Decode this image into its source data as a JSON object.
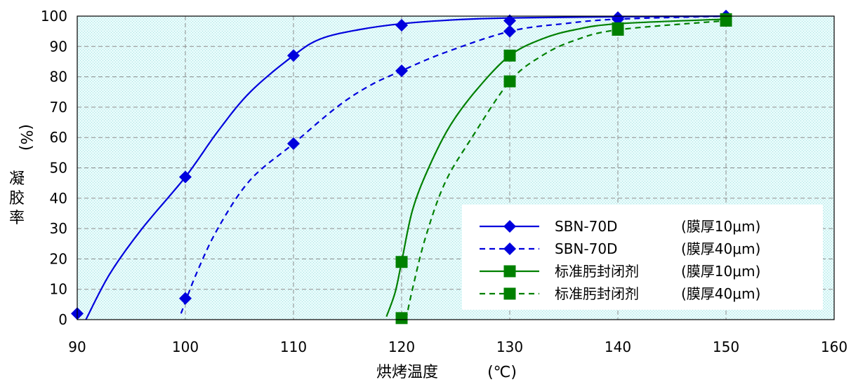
{
  "chart_data": {
    "type": "line",
    "xlabel": "烘烤温度",
    "xunit": "(℃)",
    "ylabel": "凝胶率",
    "yunit": "(%)",
    "xlim": [
      90,
      160
    ],
    "ylim": [
      0,
      100
    ],
    "xticks": [
      90,
      100,
      110,
      120,
      130,
      140,
      150,
      160
    ],
    "yticks": [
      0,
      10,
      20,
      30,
      40,
      50,
      60,
      70,
      80,
      90,
      100
    ],
    "grid": true,
    "legend_position": "bottom-right",
    "series": [
      {
        "name": "SBN-70D",
        "condition": "(膜厚10μm)",
        "color": "#0000dd",
        "marker": "diamond",
        "dash": "solid",
        "points": [
          [
            90,
            2
          ],
          [
            100,
            47
          ],
          [
            110,
            87
          ],
          [
            120,
            97
          ],
          [
            130,
            98.5
          ],
          [
            140,
            99.5
          ],
          [
            150,
            100
          ]
        ],
        "curve": [
          [
            90.8,
            0
          ],
          [
            93,
            15
          ],
          [
            96,
            30
          ],
          [
            100,
            47
          ],
          [
            103,
            62
          ],
          [
            106,
            75
          ],
          [
            110,
            87
          ],
          [
            112.5,
            92.5
          ],
          [
            116,
            95.5
          ],
          [
            120,
            97.5
          ],
          [
            125,
            98.8
          ],
          [
            130,
            99.4
          ],
          [
            140,
            99.8
          ],
          [
            150,
            100
          ]
        ]
      },
      {
        "name": "SBN-70D",
        "condition": "(膜厚40μm)",
        "color": "#0000dd",
        "marker": "diamond",
        "dash": "dashed",
        "points": [
          [
            100,
            7
          ],
          [
            110,
            58
          ],
          [
            120,
            82
          ],
          [
            130,
            95
          ],
          [
            140,
            99
          ],
          [
            150,
            100
          ]
        ],
        "curve": [
          [
            99.6,
            2
          ],
          [
            101,
            15
          ],
          [
            103,
            30
          ],
          [
            106,
            46
          ],
          [
            110,
            58
          ],
          [
            114,
            70
          ],
          [
            117,
            77
          ],
          [
            120,
            82
          ],
          [
            124,
            88
          ],
          [
            130,
            95
          ],
          [
            135,
            97.5
          ],
          [
            140,
            99
          ],
          [
            150,
            100
          ]
        ]
      },
      {
        "name": "标准肟封闭剂",
        "condition": "(膜厚10μm)",
        "color": "#008000",
        "marker": "square",
        "dash": "solid",
        "points": [
          [
            120,
            19
          ],
          [
            130,
            87
          ],
          [
            140,
            96
          ],
          [
            150,
            99
          ]
        ],
        "curve": [
          [
            118.6,
            1
          ],
          [
            119.4,
            9
          ],
          [
            120,
            19
          ],
          [
            121,
            36
          ],
          [
            122.5,
            50
          ],
          [
            124.5,
            64
          ],
          [
            127,
            76
          ],
          [
            130,
            87
          ],
          [
            133,
            92.5
          ],
          [
            136,
            95.5
          ],
          [
            140,
            97.5
          ],
          [
            150,
            99
          ]
        ]
      },
      {
        "name": "标准肟封闭剂",
        "condition": "(膜厚40μm)",
        "color": "#008000",
        "marker": "square",
        "dash": "dashed",
        "points": [
          [
            120,
            0.5
          ],
          [
            130,
            78.5
          ],
          [
            140,
            95.5
          ],
          [
            150,
            98.5
          ]
        ],
        "curve": [
          [
            120.4,
            0
          ],
          [
            121,
            10
          ],
          [
            122.2,
            27
          ],
          [
            124,
            45
          ],
          [
            126.5,
            60
          ],
          [
            130,
            78.5
          ],
          [
            133,
            87
          ],
          [
            136,
            92
          ],
          [
            140,
            95.5
          ],
          [
            150,
            98.5
          ]
        ]
      }
    ]
  }
}
